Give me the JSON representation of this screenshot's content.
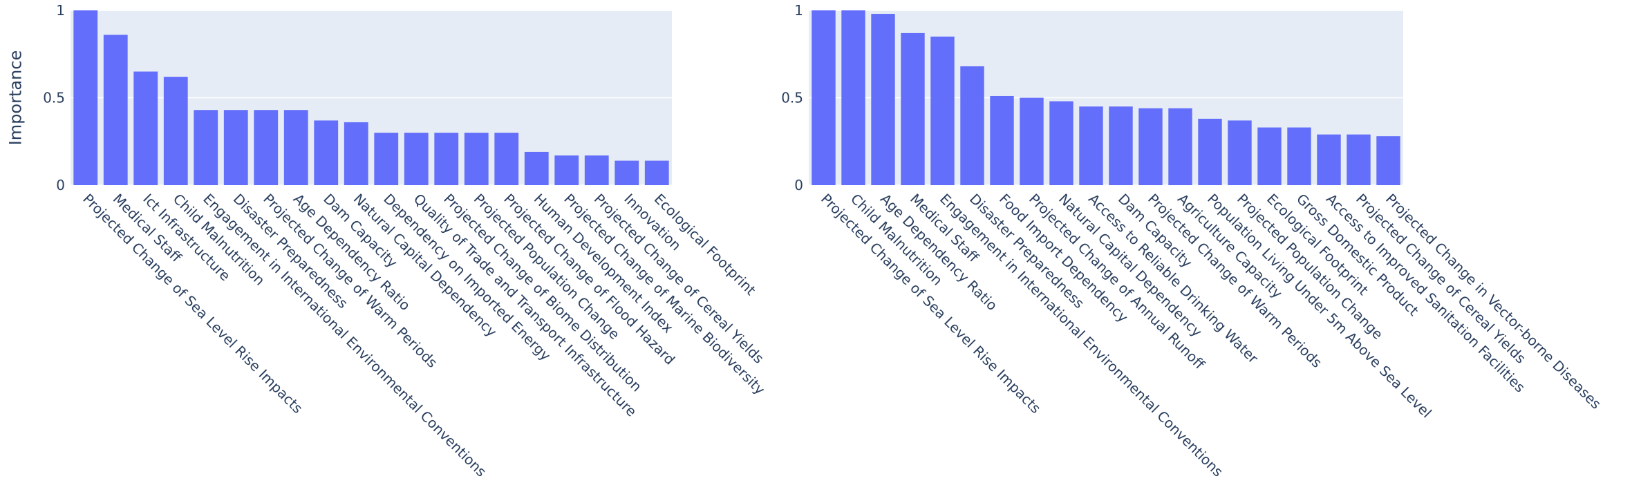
{
  "colors": {
    "bar": "#636efa",
    "plot_bg": "#e5ecf6",
    "grid": "#ffffff",
    "text": "#2a3f5f"
  },
  "chart_data": [
    {
      "type": "bar",
      "ylabel": "Importance",
      "ylim": [
        0,
        1
      ],
      "yticks": [
        0,
        0.5,
        1
      ],
      "grid": true,
      "categories": [
        "Projected Change of Sea Level Rise Impacts",
        "Medical Staff",
        "Ict Infrastructure",
        "Child Malnutrition",
        "Engagement in International Environmental Conventions",
        "Disaster Preparedness",
        "Projected Change of Warm Periods",
        "Age Dependency Ratio",
        "Dam Capacity",
        "Natural Capital Dependency",
        "Dependency on Imported Energy",
        "Quality of Trade and Transport Infrastructure",
        "Projected Change of Biome Distribution",
        "Projected Population Change",
        "Projected Change of Flood Hazard",
        "Human Development Index",
        "Projected Change of Marine Biodiversity",
        "Projected Change of Cereal Yields",
        "Innovation",
        "Ecological Footprint"
      ],
      "values": [
        1.0,
        0.86,
        0.65,
        0.62,
        0.43,
        0.43,
        0.43,
        0.43,
        0.37,
        0.36,
        0.3,
        0.3,
        0.3,
        0.3,
        0.3,
        0.19,
        0.17,
        0.17,
        0.14,
        0.14
      ]
    },
    {
      "type": "bar",
      "ylabel": "",
      "ylim": [
        0,
        1
      ],
      "yticks": [
        0,
        0.5,
        1
      ],
      "grid": true,
      "categories": [
        "Projected Change of Sea Level Rise Impacts",
        "Child Malnutrition",
        "Age Dependency Ratio",
        "Medical Staff",
        "Engagement in International Environmental Conventions",
        "Disaster Preparedness",
        "Food Import Dependency",
        "Projected Change of Annual Runoff",
        "Natural Capital Dependency",
        "Access to Reliable Drinking Water",
        "Dam Capacity",
        "Projected Change of Warm Periods",
        "Agriculture Capacity",
        "Population Living Under 5m Above Sea Level",
        "Projected Population Change",
        "Ecological Footprint",
        "Gross Domestic Product",
        "Access to Improved Sanitation Facilities",
        "Projected Change of Cereal Yields",
        "Projected Change in Vector-borne Diseases"
      ],
      "values": [
        1.0,
        1.0,
        0.98,
        0.87,
        0.85,
        0.68,
        0.51,
        0.5,
        0.48,
        0.45,
        0.45,
        0.44,
        0.44,
        0.38,
        0.37,
        0.33,
        0.33,
        0.29,
        0.29,
        0.28
      ]
    }
  ]
}
